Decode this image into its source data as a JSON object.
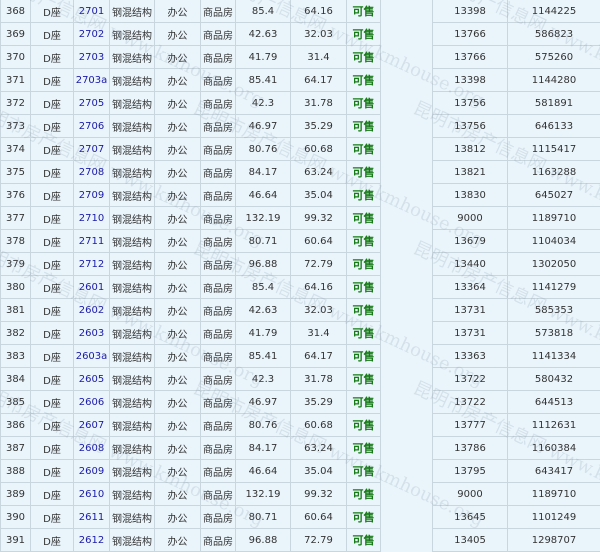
{
  "watermark": "昆明市房产信息网 www.kmhouse.org",
  "rows": [
    [
      "368",
      "D座",
      "2701",
      "钢混结构",
      "办公",
      "商品房",
      "85.4",
      "64.16",
      "可售",
      "13398",
      "1144225"
    ],
    [
      "369",
      "D座",
      "2702",
      "钢混结构",
      "办公",
      "商品房",
      "42.63",
      "32.03",
      "可售",
      "13766",
      "586823"
    ],
    [
      "370",
      "D座",
      "2703",
      "钢混结构",
      "办公",
      "商品房",
      "41.79",
      "31.4",
      "可售",
      "13766",
      "575260"
    ],
    [
      "371",
      "D座",
      "2703a",
      "钢混结构",
      "办公",
      "商品房",
      "85.41",
      "64.17",
      "可售",
      "13398",
      "1144280"
    ],
    [
      "372",
      "D座",
      "2705",
      "钢混结构",
      "办公",
      "商品房",
      "42.3",
      "31.78",
      "可售",
      "13756",
      "581891"
    ],
    [
      "373",
      "D座",
      "2706",
      "钢混结构",
      "办公",
      "商品房",
      "46.97",
      "35.29",
      "可售",
      "13756",
      "646133"
    ],
    [
      "374",
      "D座",
      "2707",
      "钢混结构",
      "办公",
      "商品房",
      "80.76",
      "60.68",
      "可售",
      "13812",
      "1115417"
    ],
    [
      "375",
      "D座",
      "2708",
      "钢混结构",
      "办公",
      "商品房",
      "84.17",
      "63.24",
      "可售",
      "13821",
      "1163288"
    ],
    [
      "376",
      "D座",
      "2709",
      "钢混结构",
      "办公",
      "商品房",
      "46.64",
      "35.04",
      "可售",
      "13830",
      "645027"
    ],
    [
      "377",
      "D座",
      "2710",
      "钢混结构",
      "办公",
      "商品房",
      "132.19",
      "99.32",
      "可售",
      "9000",
      "1189710"
    ],
    [
      "378",
      "D座",
      "2711",
      "钢混结构",
      "办公",
      "商品房",
      "80.71",
      "60.64",
      "可售",
      "13679",
      "1104034"
    ],
    [
      "379",
      "D座",
      "2712",
      "钢混结构",
      "办公",
      "商品房",
      "96.88",
      "72.79",
      "可售",
      "13440",
      "1302050"
    ],
    [
      "380",
      "D座",
      "2601",
      "钢混结构",
      "办公",
      "商品房",
      "85.4",
      "64.16",
      "可售",
      "13364",
      "1141279"
    ],
    [
      "381",
      "D座",
      "2602",
      "钢混结构",
      "办公",
      "商品房",
      "42.63",
      "32.03",
      "可售",
      "13731",
      "585353"
    ],
    [
      "382",
      "D座",
      "2603",
      "钢混结构",
      "办公",
      "商品房",
      "41.79",
      "31.4",
      "可售",
      "13731",
      "573818"
    ],
    [
      "383",
      "D座",
      "2603a",
      "钢混结构",
      "办公",
      "商品房",
      "85.41",
      "64.17",
      "可售",
      "13363",
      "1141334"
    ],
    [
      "384",
      "D座",
      "2605",
      "钢混结构",
      "办公",
      "商品房",
      "42.3",
      "31.78",
      "可售",
      "13722",
      "580432"
    ],
    [
      "385",
      "D座",
      "2606",
      "钢混结构",
      "办公",
      "商品房",
      "46.97",
      "35.29",
      "可售",
      "13722",
      "644513"
    ],
    [
      "386",
      "D座",
      "2607",
      "钢混结构",
      "办公",
      "商品房",
      "80.76",
      "60.68",
      "可售",
      "13777",
      "1112631"
    ],
    [
      "387",
      "D座",
      "2608",
      "钢混结构",
      "办公",
      "商品房",
      "84.17",
      "63.24",
      "可售",
      "13786",
      "1160384"
    ],
    [
      "388",
      "D座",
      "2609",
      "钢混结构",
      "办公",
      "商品房",
      "46.64",
      "35.04",
      "可售",
      "13795",
      "643417"
    ],
    [
      "389",
      "D座",
      "2610",
      "钢混结构",
      "办公",
      "商品房",
      "132.19",
      "99.32",
      "可售",
      "9000",
      "1189710"
    ],
    [
      "390",
      "D座",
      "2611",
      "钢混结构",
      "办公",
      "商品房",
      "80.71",
      "60.64",
      "可售",
      "13645",
      "1101249"
    ],
    [
      "391",
      "D座",
      "2612",
      "钢混结构",
      "办公",
      "商品房",
      "96.88",
      "72.79",
      "可售",
      "13405",
      "1298707"
    ]
  ]
}
